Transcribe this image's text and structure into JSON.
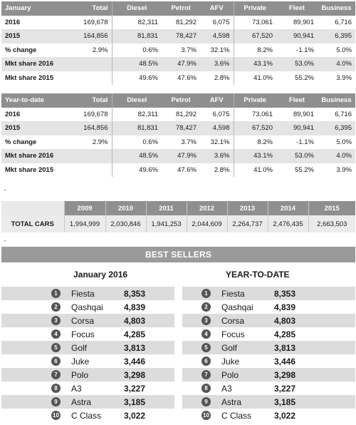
{
  "columns_headers": [
    "Total",
    "Diesel",
    "Petrol",
    "AFV",
    "Private",
    "Fleet",
    "Business"
  ],
  "january": {
    "title": "January",
    "rows": [
      {
        "label": "2016",
        "values": [
          "169,678",
          "82,311",
          "81,292",
          "6,075",
          "73,061",
          "89,901",
          "6,716"
        ]
      },
      {
        "label": "2015",
        "values": [
          "164,856",
          "81,831",
          "78,427",
          "4,598",
          "67,520",
          "90,941",
          "6,395"
        ]
      },
      {
        "label": "% change",
        "values": [
          "2.9%",
          "0.6%",
          "3.7%",
          "32.1%",
          "8.2%",
          "-1.1%",
          "5.0%"
        ]
      },
      {
        "label": "Mkt share 2016",
        "values": [
          "",
          "48.5%",
          "47.9%",
          "3.6%",
          "43.1%",
          "53.0%",
          "4.0%"
        ]
      },
      {
        "label": "Mkt share 2015",
        "values": [
          "",
          "49.6%",
          "47.6%",
          "2.8%",
          "41.0%",
          "55.2%",
          "3.9%"
        ]
      }
    ]
  },
  "ytd": {
    "title": "Year-to-date",
    "rows": [
      {
        "label": "2016",
        "values": [
          "169,678",
          "82,311",
          "81,292",
          "6,075",
          "73,061",
          "89,901",
          "6,716"
        ]
      },
      {
        "label": "2015",
        "values": [
          "164,856",
          "81,831",
          "78,427",
          "4,598",
          "67,520",
          "90,941",
          "6,395"
        ]
      },
      {
        "label": "% change",
        "values": [
          "2.9%",
          "0.6%",
          "3.7%",
          "32.1%",
          "8.2%",
          "-1.1%",
          "5.0%"
        ]
      },
      {
        "label": "Mkt share 2016",
        "values": [
          "",
          "48.5%",
          "47.9%",
          "3.6%",
          "43.1%",
          "53.0%",
          "4.0%"
        ]
      },
      {
        "label": "Mkt share 2015",
        "values": [
          "",
          "49.6%",
          "47.6%",
          "2.8%",
          "41.0%",
          "55.2%",
          "3.9%"
        ]
      }
    ]
  },
  "total_cars": {
    "label": "TOTAL CARS",
    "years": [
      "2009",
      "2010",
      "2011",
      "2012",
      "2013",
      "2014",
      "2015"
    ],
    "values": [
      "1,994,999",
      "2,030,846",
      "1,941,253",
      "2,044,609",
      "2,264,737",
      "2,476,435",
      "2,663,503"
    ]
  },
  "best_sellers": {
    "title": "BEST SELLERS",
    "left": {
      "heading": "January 2016",
      "items": [
        {
          "rank": "1",
          "name": "Fiesta",
          "value": "8,353"
        },
        {
          "rank": "2",
          "name": "Qashqai",
          "value": "4,839"
        },
        {
          "rank": "3",
          "name": "Corsa",
          "value": "4,803"
        },
        {
          "rank": "4",
          "name": "Focus",
          "value": "4,285"
        },
        {
          "rank": "5",
          "name": "Golf",
          "value": "3,813"
        },
        {
          "rank": "6",
          "name": "Juke",
          "value": "3,446"
        },
        {
          "rank": "7",
          "name": "Polo",
          "value": "3,298"
        },
        {
          "rank": "8",
          "name": "A3",
          "value": "3,227"
        },
        {
          "rank": "9",
          "name": "Astra",
          "value": "3,185"
        },
        {
          "rank": "10",
          "name": "C Class",
          "value": "3,022"
        }
      ]
    },
    "right": {
      "heading": "YEAR-TO-DATE",
      "items": [
        {
          "rank": "1",
          "name": "Fiesta",
          "value": "8,353"
        },
        {
          "rank": "2",
          "name": "Qashqai",
          "value": "4,839"
        },
        {
          "rank": "3",
          "name": "Corsa",
          "value": "4,803"
        },
        {
          "rank": "4",
          "name": "Focus",
          "value": "4,285"
        },
        {
          "rank": "5",
          "name": "Golf",
          "value": "3,813"
        },
        {
          "rank": "6",
          "name": "Juke",
          "value": "3,446"
        },
        {
          "rank": "7",
          "name": "Polo",
          "value": "3,298"
        },
        {
          "rank": "8",
          "name": "A3",
          "value": "3,227"
        },
        {
          "rank": "9",
          "name": "Astra",
          "value": "3,185"
        },
        {
          "rank": "10",
          "name": "C Class",
          "value": "3,022"
        }
      ]
    }
  }
}
